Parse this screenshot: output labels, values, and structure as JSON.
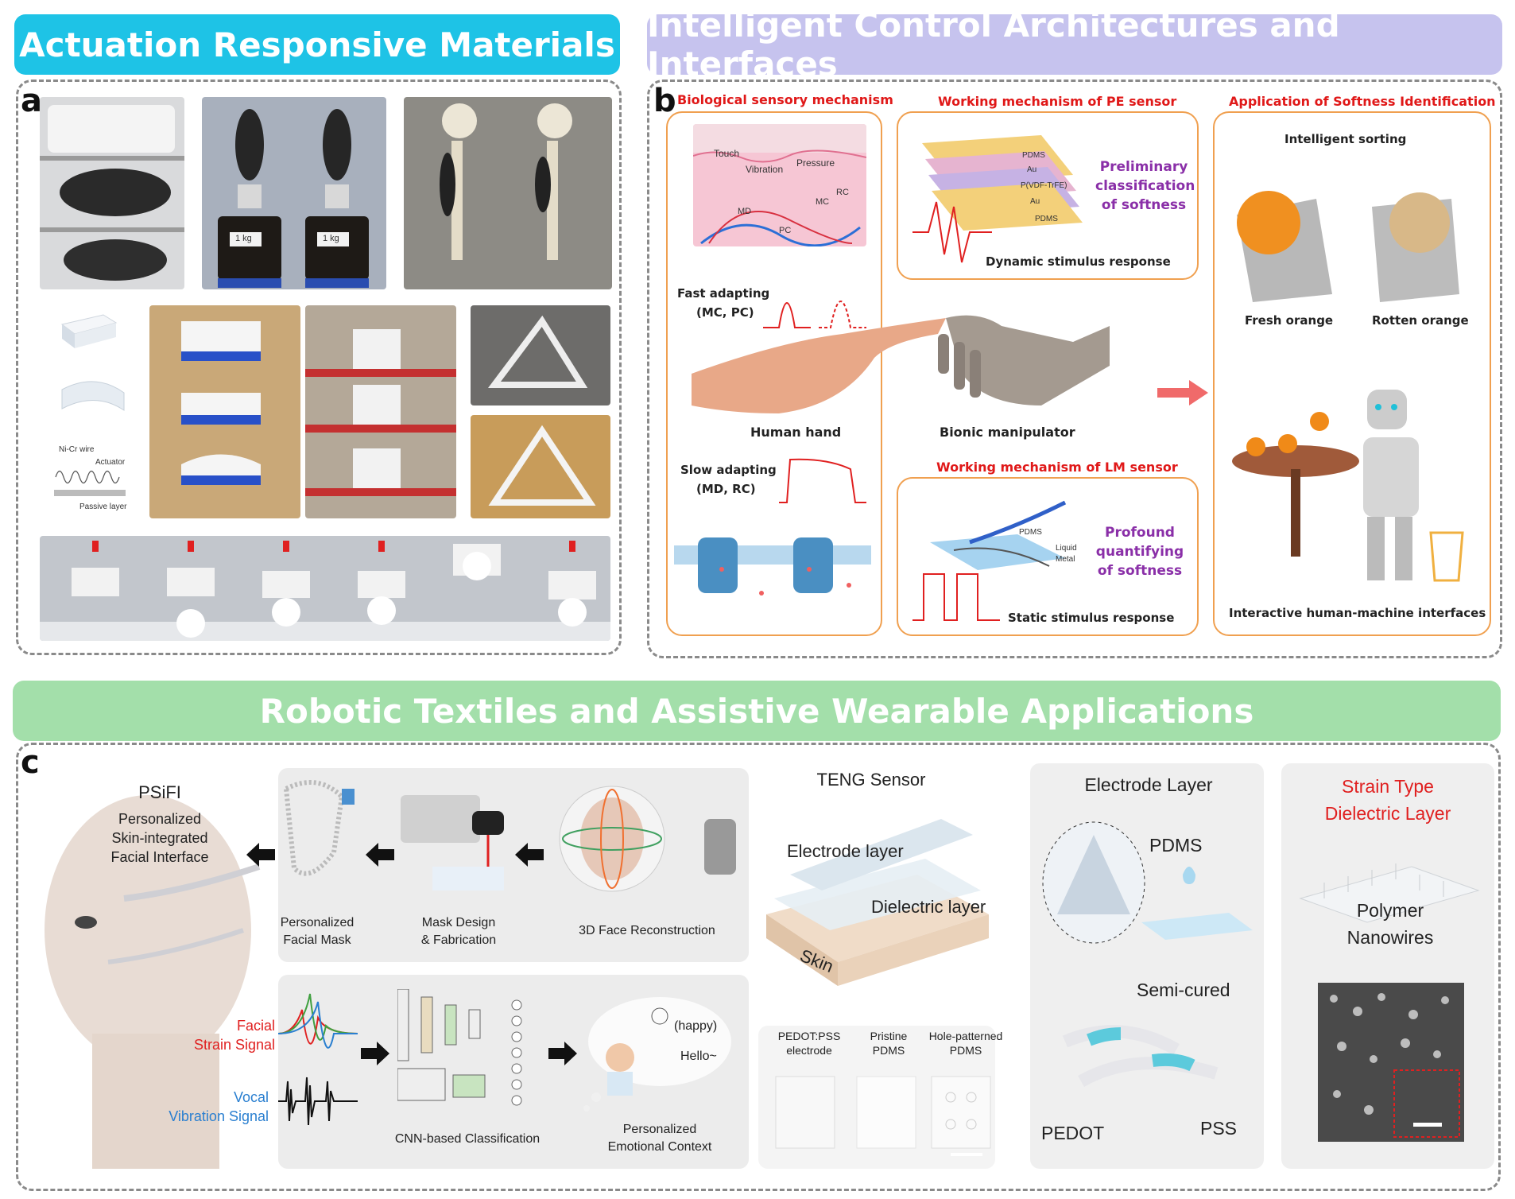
{
  "panels": {
    "a": {
      "letter": "a",
      "banner": "Actuation Responsive Materials",
      "weight_label": "1 kg",
      "schematic": {
        "wire": "Ni-Cr wire",
        "actuator": "Actuator",
        "passive": "Passive layer"
      }
    },
    "b": {
      "letter": "b",
      "banner": "Intelligent Control Architectures and Interfaces",
      "bio": {
        "title": "Biological sensory mechanism",
        "touch": "Touch",
        "vibration": "Vibration",
        "pressure": "Pressure",
        "md": "MD",
        "pc": "PC",
        "mc": "MC",
        "rc": "RC",
        "fast": "Fast adapting",
        "fast_sub": "(MC, PC)",
        "slow": "Slow adapting",
        "slow_sub": "(MD, RC)"
      },
      "pe": {
        "title": "Working mechanism of PE sensor",
        "layers": [
          "PDMS",
          "Au",
          "P(VDF-TrFE)",
          "Au",
          "PDMS"
        ],
        "class_1": "Preliminary",
        "class_2": "classification",
        "class_3": "of softness",
        "response": "Dynamic stimulus response"
      },
      "hand_label": "Human hand",
      "manip_label": "Bionic manipulator",
      "lm": {
        "title": "Working mechanism of LM sensor",
        "pdms": "PDMS",
        "liquid": "Liquid",
        "metal": "Metal",
        "quant_1": "Profound",
        "quant_2": "quantifying",
        "quant_3": "of softness",
        "response": "Static stimulus response"
      },
      "app": {
        "title": "Application of Softness Identification",
        "sorting": "Intelligent sorting",
        "fresh": "Fresh orange",
        "rotten": "Rotten orange",
        "hmi": "Interactive human-machine interfaces"
      }
    },
    "c": {
      "letter": "c",
      "banner": "Robotic Textiles and Assistive Wearable Applications",
      "psifi": {
        "title": "PSiFI",
        "line1": "Personalized",
        "line2": "Skin-integrated",
        "line3": "Facial Interface"
      },
      "facial_1": "Facial",
      "facial_2": "Strain Signal",
      "vocal_1": "Vocal",
      "vocal_2": "Vibration Signal",
      "mask_1": "Personalized",
      "mask_2": "Facial Mask",
      "design_1": "Mask Design",
      "design_2": "& Fabrication",
      "recon": "3D Face Reconstruction",
      "cnn": "CNN-based Classification",
      "happy": "(happy)",
      "hello": "Hello~",
      "context_1": "Personalized",
      "context_2": "Emotional Context",
      "teng": {
        "title": "TENG Sensor",
        "electrode": "Electrode layer",
        "dielectric": "Dielectric layer",
        "skin": "Skin",
        "s1a": "PEDOT:PSS",
        "s1b": "electrode",
        "s2a": "Pristine",
        "s2b": "PDMS",
        "s3a": "Hole-patterned",
        "s3b": "PDMS"
      },
      "elec": {
        "title": "Electrode Layer",
        "pdms": "PDMS",
        "semi": "Semi-cured",
        "pedot": "PEDOT",
        "pss": "PSS"
      },
      "strain": {
        "title1": "Strain Type",
        "title2": "Dielectric Layer",
        "poly1": "Polymer",
        "poly2": "Nanowires"
      }
    }
  },
  "colors": {
    "banner_a": "#1ec3e6",
    "banner_b": "#c6c3ee",
    "banner_c": "#a3dfaa",
    "title_red": "#e01818",
    "purple": "#8a2fa8"
  }
}
